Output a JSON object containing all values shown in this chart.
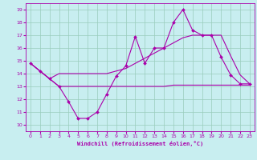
{
  "xlabel": "Windchill (Refroidissement éolien,°C)",
  "xlim": [
    -0.5,
    23.5
  ],
  "ylim": [
    9.5,
    19.5
  ],
  "yticks": [
    10,
    11,
    12,
    13,
    14,
    15,
    16,
    17,
    18,
    19
  ],
  "xticks": [
    0,
    1,
    2,
    3,
    4,
    5,
    6,
    7,
    8,
    9,
    10,
    11,
    12,
    13,
    14,
    15,
    16,
    17,
    18,
    19,
    20,
    21,
    22,
    23
  ],
  "bg_color": "#c8eef0",
  "line_color": "#aa00aa",
  "grid_color": "#99ccbb",
  "line1_x": [
    0,
    1,
    2,
    3,
    4,
    5,
    6,
    7,
    8,
    9,
    10,
    11,
    12,
    13,
    14,
    15,
    16,
    17,
    18,
    19,
    20,
    21,
    22,
    23
  ],
  "line1_y": [
    14.8,
    14.2,
    13.6,
    13.0,
    11.8,
    10.5,
    10.5,
    11.0,
    12.4,
    13.8,
    14.6,
    16.9,
    14.8,
    16.0,
    16.0,
    18.0,
    19.0,
    17.4,
    17.0,
    17.0,
    15.3,
    13.9,
    13.2,
    13.2
  ],
  "line2_x": [
    0,
    1,
    2,
    3,
    4,
    5,
    6,
    7,
    8,
    9,
    10,
    11,
    12,
    13,
    14,
    15,
    16,
    17,
    18,
    19,
    20,
    21,
    22,
    23
  ],
  "line2_y": [
    14.8,
    14.2,
    13.6,
    13.0,
    13.0,
    13.0,
    13.0,
    13.0,
    13.0,
    13.0,
    13.0,
    13.0,
    13.0,
    13.0,
    13.0,
    13.1,
    13.1,
    13.1,
    13.1,
    13.1,
    13.1,
    13.1,
    13.1,
    13.1
  ],
  "line3_x": [
    0,
    1,
    2,
    3,
    4,
    5,
    6,
    7,
    8,
    9,
    10,
    11,
    12,
    13,
    14,
    15,
    16,
    17,
    18,
    19,
    20,
    21,
    22,
    23
  ],
  "line3_y": [
    14.8,
    14.2,
    13.6,
    14.0,
    14.0,
    14.0,
    14.0,
    14.0,
    14.0,
    14.2,
    14.4,
    14.8,
    15.2,
    15.6,
    16.0,
    16.4,
    16.8,
    17.0,
    17.0,
    17.0,
    17.0,
    15.4,
    13.9,
    13.2
  ]
}
